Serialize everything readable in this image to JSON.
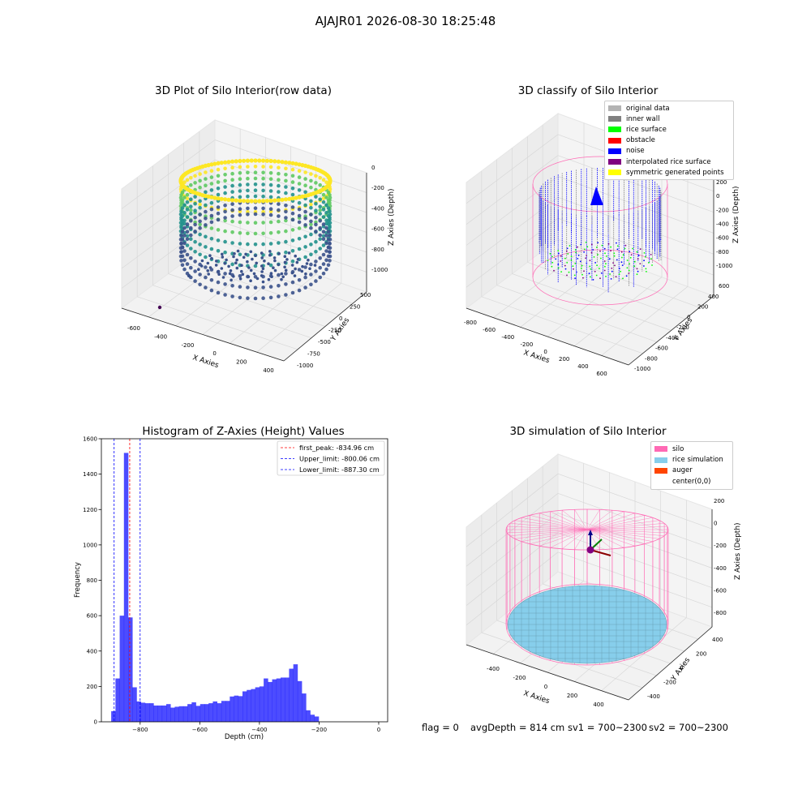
{
  "figure": {
    "suptitle": "AJAJR01 2026-08-30 18:25:48"
  },
  "panels": {
    "raw": {
      "title": "3D Plot of Silo Interior(row data)",
      "xlabel": "X Axies",
      "ylabel": "Y Axies",
      "zlabel": "Z Axies (Depth)",
      "xticks": [
        "-600",
        "-400",
        "-200",
        "0",
        "200",
        "400"
      ],
      "yticks": [
        "500",
        "250",
        "0",
        "-250",
        "-500",
        "-750",
        "-1000"
      ],
      "zticks": [
        "0",
        "-200",
        "-400",
        "-600",
        "-800",
        "-1000"
      ],
      "colormap": [
        "#440154",
        "#3b528b",
        "#21918c",
        "#5ec962",
        "#fde725"
      ]
    },
    "classify": {
      "title": "3D classify of Silo Interior",
      "xlabel": "X Axies",
      "ylabel": "Y Axies",
      "zlabel": "Z Axies (Depth)",
      "xticks": [
        "-800",
        "-600",
        "-400",
        "-200",
        "0",
        "200",
        "400",
        "600"
      ],
      "yticks": [
        "600",
        "400",
        "200",
        "0",
        "-200",
        "-400",
        "-600",
        "-800",
        "-1000"
      ],
      "zticks": [
        "200",
        "0",
        "-200",
        "-400",
        "-600",
        "-800",
        "-1000"
      ],
      "legend": [
        {
          "label": "original data",
          "color": "#b3b3b3"
        },
        {
          "label": "inner wall",
          "color": "#808080"
        },
        {
          "label": "rice surface",
          "color": "#00ff00"
        },
        {
          "label": "obstacle",
          "color": "#ff0000"
        },
        {
          "label": "noise",
          "color": "#0000ff"
        },
        {
          "label": "interpolated rice surface",
          "color": "#800080"
        },
        {
          "label": "symmetric generated points",
          "color": "#ffff00"
        }
      ]
    },
    "simulation": {
      "title": "3D simulation of Silo Interior",
      "xlabel": "X Axies",
      "ylabel": "Y Axies",
      "zlabel": "Z Axies (Depth)",
      "xticks": [
        "-400",
        "-200",
        "0",
        "200",
        "400"
      ],
      "yticks": [
        "400",
        "200",
        "0",
        "-200",
        "-400"
      ],
      "zticks": [
        "200",
        "0",
        "-200",
        "-400",
        "-600",
        "-800"
      ],
      "legend": [
        {
          "label": "silo",
          "color": "#ff69b4"
        },
        {
          "label": "rice simulation",
          "color": "#87ceeb"
        },
        {
          "label": "auger",
          "color": "#ff4500"
        },
        {
          "label": "center(0,0)",
          "color": "#ffffff"
        }
      ]
    }
  },
  "footer": {
    "flag": "flag = 0",
    "avgDepth": "avgDepth = 814 cm",
    "sv1": "sv1 = 700~2300",
    "sv2": "sv2 = 700~2300"
  },
  "chart_data": [
    {
      "type": "bar",
      "title": "Histogram of Z-Axies (Height) Values",
      "xlabel": "Depth (cm)",
      "ylabel": "Frequency",
      "xlim": [
        -930,
        30
      ],
      "ylim": [
        0,
        1600
      ],
      "xticks": [
        -800,
        -600,
        -400,
        -200,
        0
      ],
      "yticks": [
        0,
        200,
        400,
        600,
        800,
        1000,
        1200,
        1400,
        1600
      ],
      "bin_start": -897,
      "bin_width": 14.2,
      "color": "#0000ff",
      "values": [
        60,
        245,
        600,
        1520,
        590,
        195,
        115,
        108,
        105,
        105,
        92,
        92,
        92,
        100,
        80,
        85,
        88,
        88,
        100,
        110,
        90,
        100,
        100,
        105,
        115,
        105,
        118,
        118,
        143,
        148,
        145,
        172,
        180,
        185,
        195,
        200,
        245,
        225,
        240,
        245,
        250,
        250,
        300,
        325,
        230,
        160,
        65,
        40,
        30
      ],
      "vlines": [
        {
          "label": "first_peak: -834.96 cm",
          "x": -834.96,
          "color": "#ff0000"
        },
        {
          "label": "Upper_limit: -800.06 cm",
          "x": -800.06,
          "color": "#0000ff"
        },
        {
          "label": "Lower_limit: -887.30 cm",
          "x": -887.3,
          "color": "#0000ff"
        }
      ],
      "legend_position": "upper-right"
    }
  ]
}
